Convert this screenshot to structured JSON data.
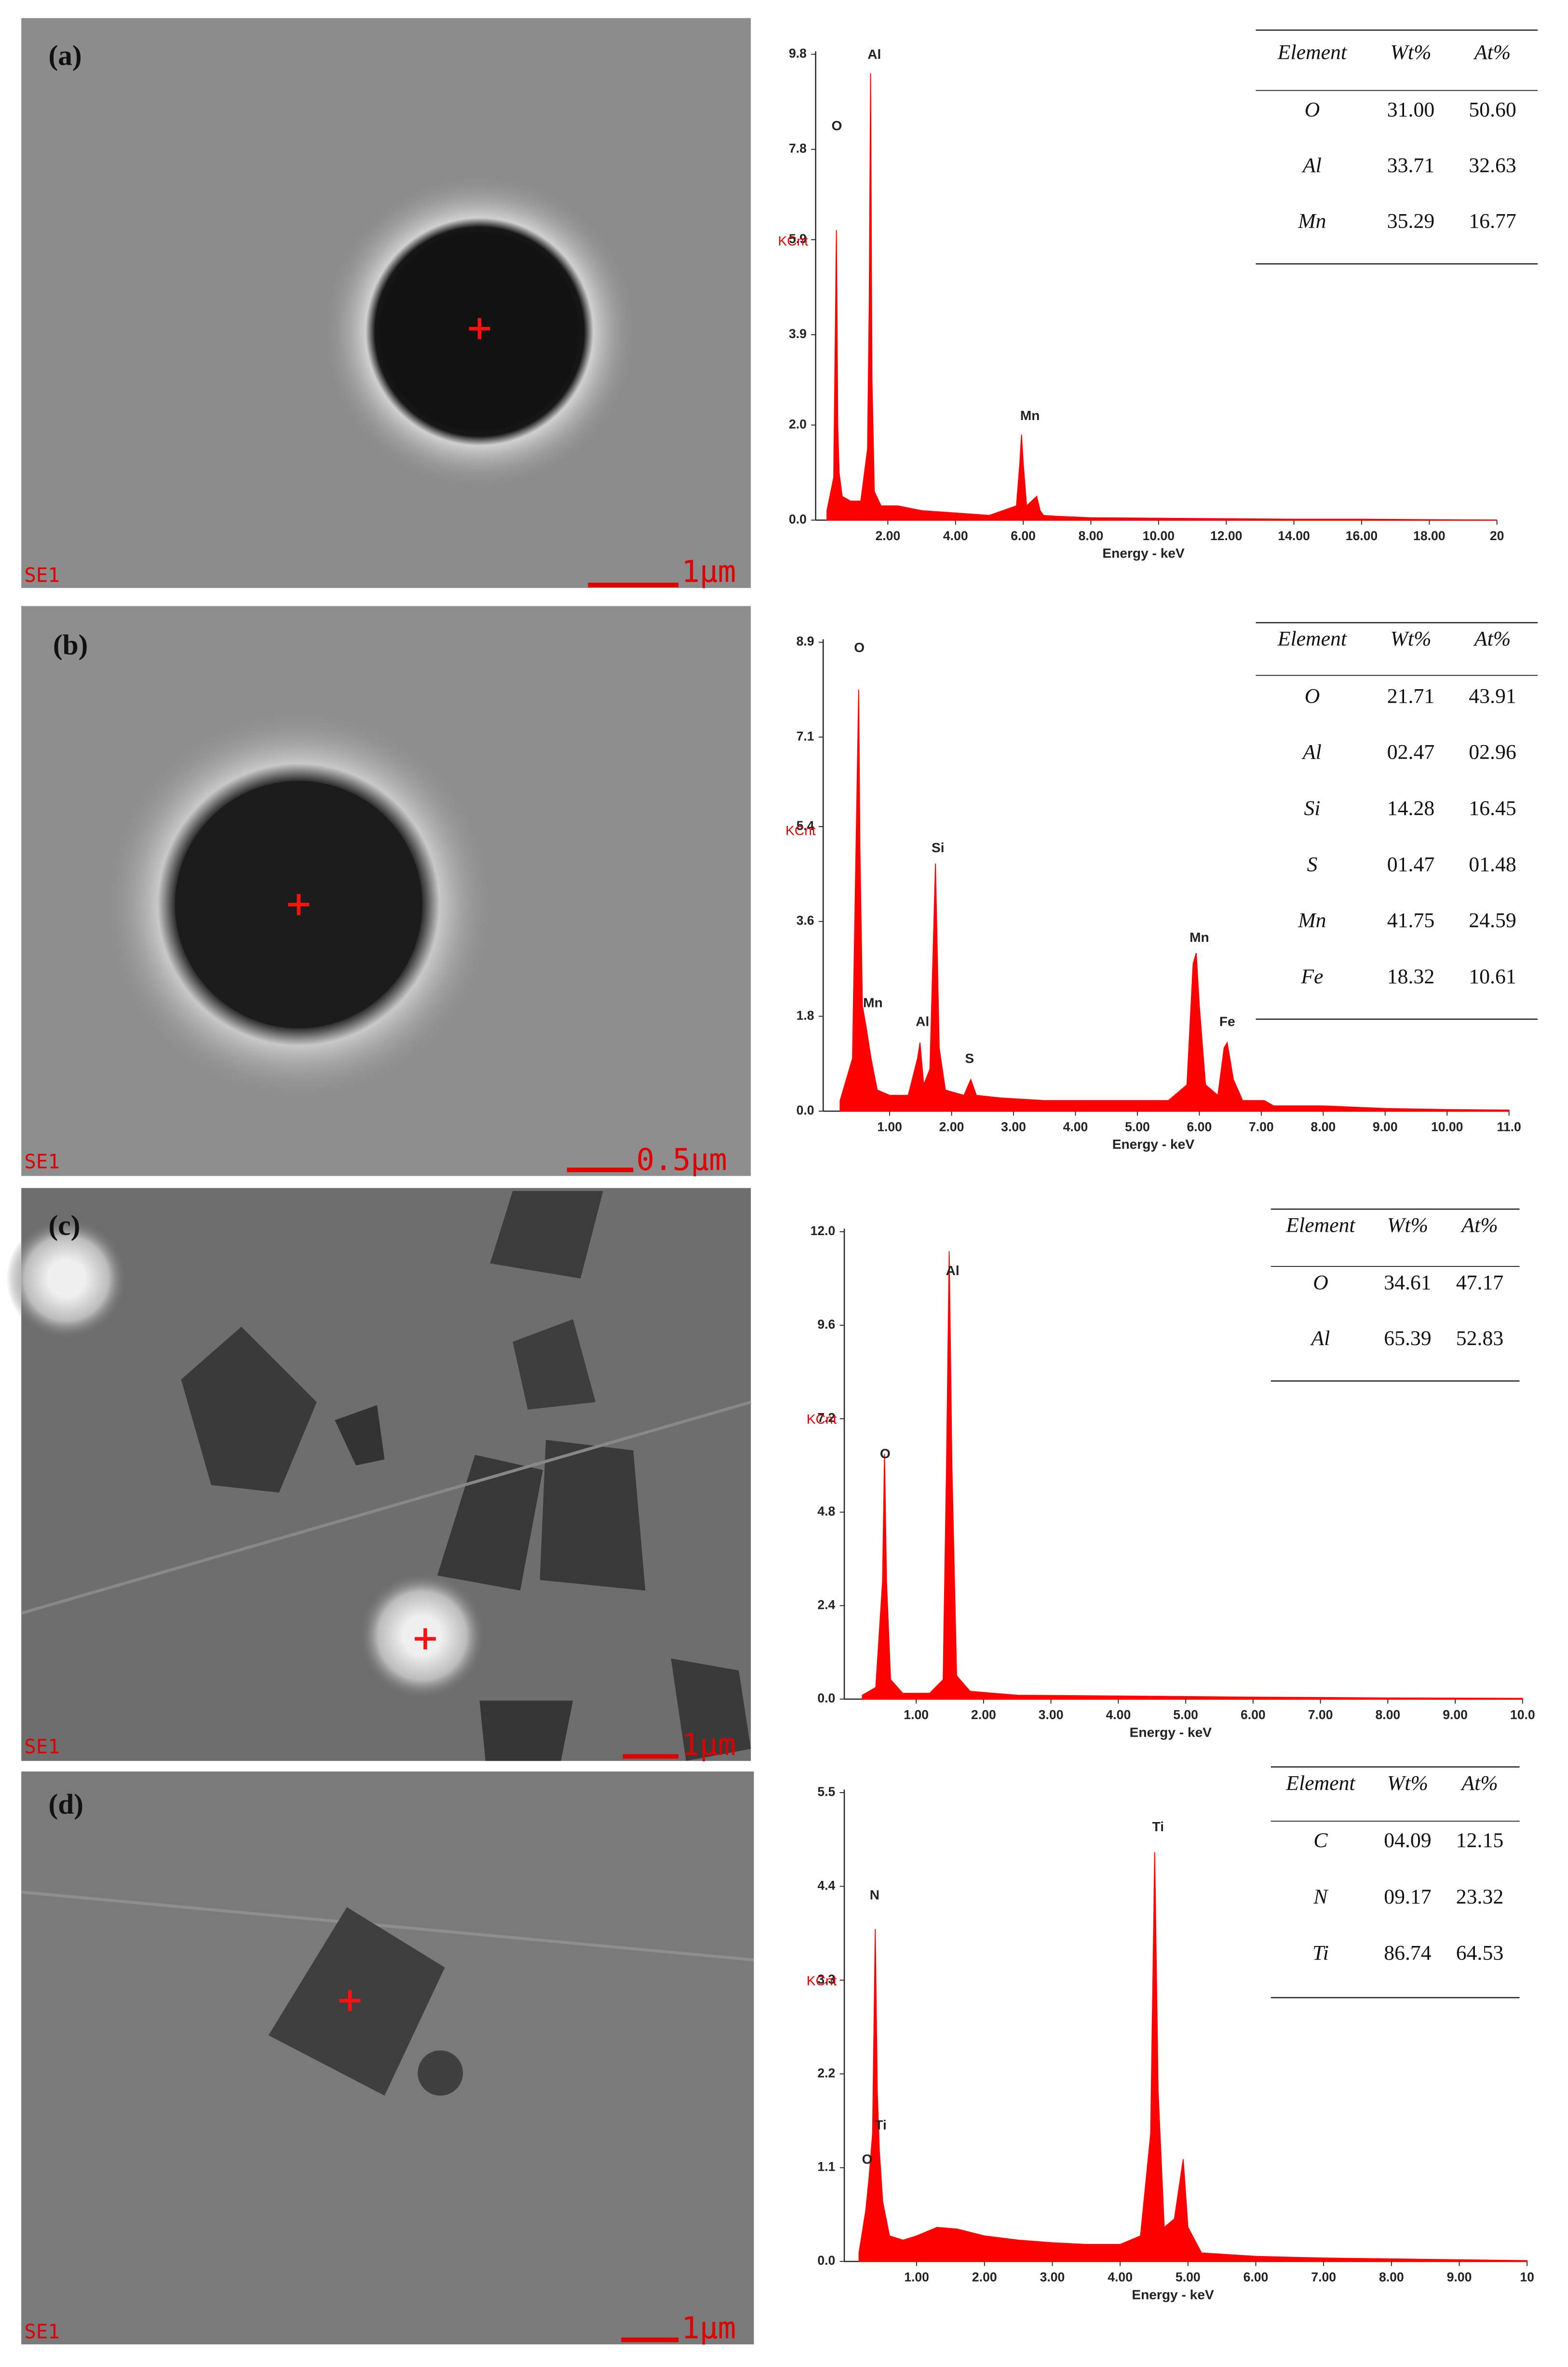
{
  "chart_data": [
    {
      "type": "area",
      "color": "#ff0000",
      "xlabel": "Energy - keV",
      "ylabel": "KCnt",
      "x": [
        0.2,
        0.4,
        0.48,
        0.52,
        0.56,
        0.65,
        0.9,
        1.2,
        1.4,
        1.45,
        1.49,
        1.53,
        1.6,
        1.8,
        2.3,
        3,
        4,
        5,
        5.8,
        5.9,
        5.95,
        6.0,
        6.1,
        6.4,
        6.5,
        6.6,
        7,
        8,
        10,
        12,
        14,
        16,
        18,
        20
      ],
      "values": [
        0.2,
        0.9,
        6.1,
        2.0,
        1.0,
        0.5,
        0.4,
        0.4,
        1.5,
        4.6,
        9.4,
        3.0,
        0.6,
        0.3,
        0.3,
        0.2,
        0.15,
        0.1,
        0.3,
        1.2,
        1.8,
        1.2,
        0.3,
        0.5,
        0.2,
        0.1,
        0.08,
        0.05,
        0.04,
        0.03,
        0.02,
        0.02,
        0.01,
        0
      ],
      "xlim": [
        0,
        20
      ],
      "ylim": [
        0,
        9.8
      ],
      "xticks": [
        {
          "value": 2,
          "label": "2.00"
        },
        {
          "value": 4,
          "label": "4.00"
        },
        {
          "value": 6,
          "label": "6.00"
        },
        {
          "value": 8,
          "label": "8.00"
        },
        {
          "value": 10,
          "label": "10.00"
        },
        {
          "value": 12,
          "label": "12.00"
        },
        {
          "value": 14,
          "label": "14.00"
        },
        {
          "value": 16,
          "label": "16.00"
        },
        {
          "value": 18,
          "label": "18.00"
        },
        20
      ],
      "yticks": [
        {
          "value": 0,
          "label": "0.0"
        },
        {
          "value": 2,
          "label": "2.0"
        },
        3.9,
        5.9,
        7.8,
        9.8
      ],
      "annotations": [
        {
          "text": "O",
          "x": 0.49,
          "y": 8.3
        },
        {
          "text": "Al",
          "x": 1.6,
          "y": 9.8
        },
        {
          "text": "Mn",
          "x": 6.2,
          "y": 2.2
        }
      ]
    },
    {
      "type": "area",
      "color": "#ff0000",
      "xlabel": "Energy - keV",
      "ylabel": "KCnt",
      "x": [
        0.2,
        0.4,
        0.5,
        0.52,
        0.56,
        0.62,
        0.7,
        0.8,
        1.0,
        1.3,
        1.45,
        1.49,
        1.55,
        1.65,
        1.74,
        1.8,
        1.9,
        2.2,
        2.31,
        2.4,
        2.8,
        3.5,
        4.5,
        5.5,
        5.8,
        5.9,
        5.95,
        6.0,
        6.1,
        6.3,
        6.4,
        6.45,
        6.55,
        6.7,
        7.05,
        7.2,
        8,
        9,
        10,
        11
      ],
      "values": [
        0.2,
        1.0,
        8.0,
        5.0,
        2.0,
        1.6,
        1.0,
        0.4,
        0.3,
        0.3,
        1.0,
        1.3,
        0.5,
        0.8,
        4.7,
        1.2,
        0.4,
        0.3,
        0.6,
        0.3,
        0.25,
        0.2,
        0.2,
        0.2,
        0.5,
        2.8,
        3.0,
        2.0,
        0.5,
        0.3,
        1.2,
        1.3,
        0.6,
        0.2,
        0.2,
        0.1,
        0.1,
        0.05,
        0.03,
        0.02
      ],
      "xlim": [
        0,
        11
      ],
      "ylim": [
        0,
        8.9
      ],
      "xticks": [
        {
          "value": 1,
          "label": "1.00"
        },
        {
          "value": 2,
          "label": "2.00"
        },
        {
          "value": 3,
          "label": "3.00"
        },
        {
          "value": 4,
          "label": "4.00"
        },
        {
          "value": 5,
          "label": "5.00"
        },
        {
          "value": 6,
          "label": "6.00"
        },
        {
          "value": 7,
          "label": "7.00"
        },
        {
          "value": 8,
          "label": "8.00"
        },
        {
          "value": 9,
          "label": "9.00"
        },
        {
          "value": 10,
          "label": "10.00"
        },
        {
          "value": 11,
          "label": "11.0"
        }
      ],
      "yticks": [
        {
          "value": 0,
          "label": "0.0"
        },
        1.8,
        3.6,
        5.4,
        7.1,
        8.9
      ],
      "annotations": [
        {
          "text": "O",
          "x": 0.51,
          "y": 8.8
        },
        {
          "text": "Mn",
          "x": 0.73,
          "y": 2.06
        },
        {
          "text": "Al",
          "x": 1.53,
          "y": 1.7
        },
        {
          "text": "Si",
          "x": 1.78,
          "y": 5.0
        },
        {
          "text": "S",
          "x": 2.29,
          "y": 1.0
        },
        {
          "text": "Mn",
          "x": 6.0,
          "y": 3.3
        },
        {
          "text": "Fe",
          "x": 6.45,
          "y": 1.7
        }
      ]
    },
    {
      "type": "area",
      "color": "#ff0000",
      "xlabel": "Energy - keV",
      "ylabel": "KCnt",
      "x": [
        0.2,
        0.4,
        0.5,
        0.53,
        0.56,
        0.62,
        0.8,
        1.2,
        1.4,
        1.45,
        1.49,
        1.53,
        1.6,
        1.8,
        2.5,
        4,
        6,
        8,
        10
      ],
      "values": [
        0.1,
        0.3,
        3.0,
        6.3,
        3.0,
        0.5,
        0.15,
        0.15,
        0.5,
        6,
        11.5,
        6,
        0.6,
        0.2,
        0.1,
        0.08,
        0.05,
        0.03,
        0.02
      ],
      "xlim": [
        0,
        10
      ],
      "ylim": [
        0,
        12
      ],
      "xticks": [
        {
          "value": 1,
          "label": "1.00"
        },
        {
          "value": 2,
          "label": "2.00"
        },
        {
          "value": 3,
          "label": "3.00"
        },
        {
          "value": 4,
          "label": "4.00"
        },
        {
          "value": 5,
          "label": "5.00"
        },
        {
          "value": 6,
          "label": "6.00"
        },
        {
          "value": 7,
          "label": "7.00"
        },
        {
          "value": 8,
          "label": "8.00"
        },
        {
          "value": 9,
          "label": "9.00"
        },
        {
          "value": 10,
          "label": "10.0"
        }
      ],
      "yticks": [
        {
          "value": 0,
          "label": "0.0"
        },
        2.4,
        4.8,
        7.2,
        9.6,
        {
          "value": 12,
          "label": "12.0"
        }
      ],
      "annotations": [
        {
          "text": "Al",
          "x": 1.54,
          "y": 11.0
        },
        {
          "text": "O",
          "x": 0.54,
          "y": 6.3
        }
      ]
    },
    {
      "type": "area",
      "color": "#ff0000",
      "xlabel": "Energy - keV",
      "ylabel": "KCnt",
      "x": [
        0.15,
        0.25,
        0.3,
        0.35,
        0.39,
        0.42,
        0.45,
        0.5,
        0.6,
        0.8,
        1.0,
        1.3,
        1.6,
        2.0,
        2.5,
        3.0,
        3.5,
        4.0,
        4.3,
        4.45,
        4.51,
        4.56,
        4.65,
        4.8,
        4.93,
        5.0,
        5.2,
        6,
        7,
        8,
        9,
        10
      ],
      "values": [
        0.1,
        0.6,
        1.0,
        1.5,
        3.9,
        2.0,
        1.3,
        0.7,
        0.3,
        0.25,
        0.3,
        0.4,
        0.38,
        0.3,
        0.25,
        0.22,
        0.2,
        0.2,
        0.3,
        1.5,
        4.8,
        2.0,
        0.4,
        0.5,
        1.2,
        0.4,
        0.1,
        0.06,
        0.04,
        0.03,
        0.02,
        0.01
      ],
      "xlim": [
        0,
        10
      ],
      "ylim": [
        0,
        5.5
      ],
      "xticks": [
        {
          "value": 1,
          "label": "1.00"
        },
        {
          "value": 2,
          "label": "2.00"
        },
        {
          "value": 3,
          "label": "3.00"
        },
        {
          "value": 4,
          "label": "4.00"
        },
        {
          "value": 5,
          "label": "5.00"
        },
        {
          "value": 6,
          "label": "6.00"
        },
        {
          "value": 7,
          "label": "7.00"
        },
        {
          "value": 8,
          "label": "8.00"
        },
        {
          "value": 9,
          "label": "9.00"
        },
        10
      ],
      "yticks": [
        {
          "value": 0,
          "label": "0.0"
        },
        1.1,
        2.2,
        3.3,
        4.4,
        5.5
      ],
      "annotations": [
        {
          "text": "N",
          "x": 0.38,
          "y": 4.3
        },
        {
          "text": "Ti",
          "x": 0.47,
          "y": 1.6
        },
        {
          "text": "O",
          "x": 0.27,
          "y": 1.2
        },
        {
          "text": "Ti",
          "x": 4.56,
          "y": 5.1
        }
      ]
    }
  ],
  "panels": [
    {
      "label": "(a)",
      "detector": "SE1",
      "scale": "1μm",
      "table": {
        "header": [
          "Element",
          "Wt%",
          "At%"
        ],
        "rows": [
          [
            "O",
            "31.00",
            "50.60"
          ],
          [
            "Al",
            "33.71",
            "32.63"
          ],
          [
            "Mn",
            "35.29",
            "16.77"
          ]
        ]
      }
    },
    {
      "label": "(b)",
      "detector": "SE1",
      "scale": "0.5μm",
      "table": {
        "header": [
          "Element",
          "Wt%",
          "At%"
        ],
        "rows": [
          [
            "O",
            "21.71",
            "43.91"
          ],
          [
            "Al",
            "02.47",
            "02.96"
          ],
          [
            "Si",
            "14.28",
            "16.45"
          ],
          [
            "S",
            "01.47",
            "01.48"
          ],
          [
            "Mn",
            "41.75",
            "24.59"
          ],
          [
            "Fe",
            "18.32",
            "10.61"
          ]
        ]
      }
    },
    {
      "label": "(c)",
      "detector": "SE1",
      "scale": "1μm",
      "table": {
        "header": [
          "Element",
          "Wt%",
          "At%"
        ],
        "rows": [
          [
            "O",
            "34.61",
            "47.17"
          ],
          [
            "Al",
            "65.39",
            "52.83"
          ]
        ]
      }
    },
    {
      "label": "(d)",
      "detector": "SE1",
      "scale": "1μm",
      "table": {
        "header": [
          "Element",
          "Wt%",
          "At%"
        ],
        "rows": [
          [
            "C",
            "04.09",
            "12.15"
          ],
          [
            "N",
            "09.17",
            "23.32"
          ],
          [
            "Ti",
            "86.74",
            "64.53"
          ]
        ]
      }
    }
  ]
}
